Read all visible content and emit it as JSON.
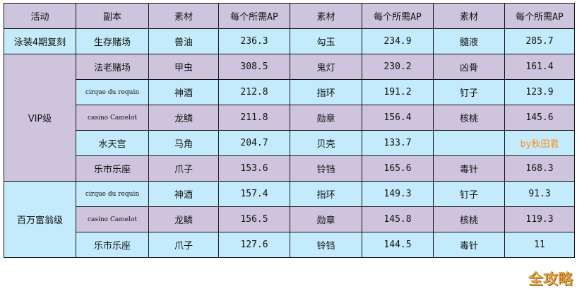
{
  "headers": [
    "活动",
    "副本",
    "素材",
    "每个所需AP",
    "素材",
    "每个所需AP",
    "素材",
    "每个所需AP"
  ],
  "groups": [
    {
      "activity": "泳装4期复刻",
      "rows": [
        [
          "生存赌场",
          "兽油",
          "236.3",
          "勾玉",
          "234.9",
          "髓液",
          "285.7"
        ]
      ]
    },
    {
      "activity": "VIP级",
      "rows": [
        [
          "法老赌场",
          "甲虫",
          "308.5",
          "鬼灯",
          "230.2",
          "凶骨",
          "161.4"
        ],
        [
          "cirque du requin",
          "神酒",
          "212.8",
          "指环",
          "191.2",
          "钉子",
          "123.9"
        ],
        [
          "casino Camelot",
          "龙鳞",
          "211.8",
          "勋章",
          "156.4",
          "核桃",
          "145.6"
        ],
        [
          "水天宫",
          "马角",
          "204.7",
          "贝壳",
          "133.7",
          "",
          "by秋田君"
        ],
        [
          "乐市乐座",
          "爪子",
          "153.6",
          "铃铛",
          "165.6",
          "毒针",
          "168.3"
        ]
      ]
    },
    {
      "activity": "百万富翁级",
      "rows": [
        [
          "cirque du requin",
          "神酒",
          "157.4",
          "指环",
          "149.3",
          "钉子",
          "91.3"
        ],
        [
          "casino Camelot",
          "龙鳞",
          "156.5",
          "勋章",
          "145.8",
          "核桃",
          "119.3"
        ],
        [
          "乐市乐座",
          "爪子",
          "127.6",
          "铃铛",
          "144.5",
          "毒针",
          "11"
        ]
      ]
    }
  ],
  "watermark": "全攻略"
}
